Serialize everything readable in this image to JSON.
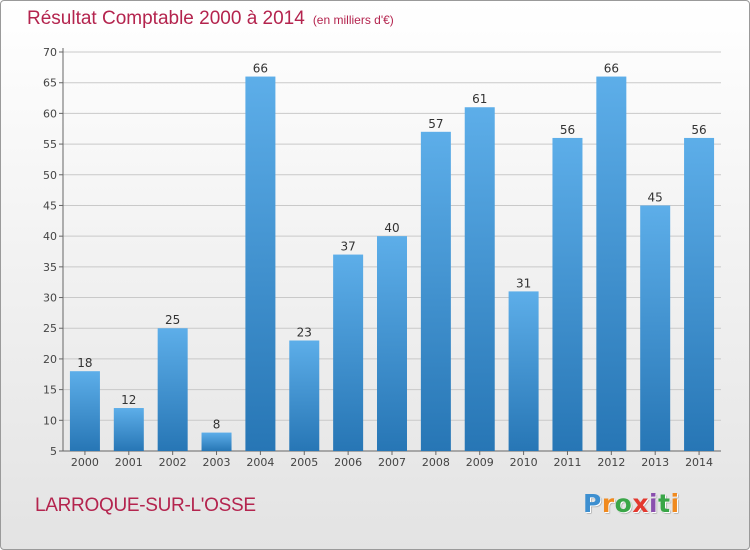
{
  "header": {
    "title": "Résultat Comptable 2000 à 2014",
    "subtitle": "(en milliers d'€)"
  },
  "footer": {
    "commune": "LARROQUE-SUR-L'OSSE",
    "logo_text": "Proxiti"
  },
  "colors": {
    "title": "#b4244e",
    "bar_light": "#5daee9",
    "bar_dark": "#2776b5",
    "grid": "#c9c9c9"
  },
  "chart_data": {
    "type": "bar",
    "title": "Résultat Comptable 2000 à 2014",
    "subtitle": "(en milliers d'€)",
    "categories": [
      "2000",
      "2001",
      "2002",
      "2003",
      "2004",
      "2005",
      "2006",
      "2007",
      "2008",
      "2009",
      "2010",
      "2011",
      "2012",
      "2013",
      "2014"
    ],
    "values": [
      18,
      12,
      25,
      8,
      66,
      23,
      37,
      40,
      57,
      61,
      31,
      56,
      66,
      45,
      56
    ],
    "ylim": [
      5,
      70
    ],
    "yticks": [
      5,
      10,
      15,
      20,
      25,
      30,
      35,
      40,
      45,
      50,
      55,
      60,
      65,
      70
    ],
    "grid": true,
    "data_labels": true
  }
}
